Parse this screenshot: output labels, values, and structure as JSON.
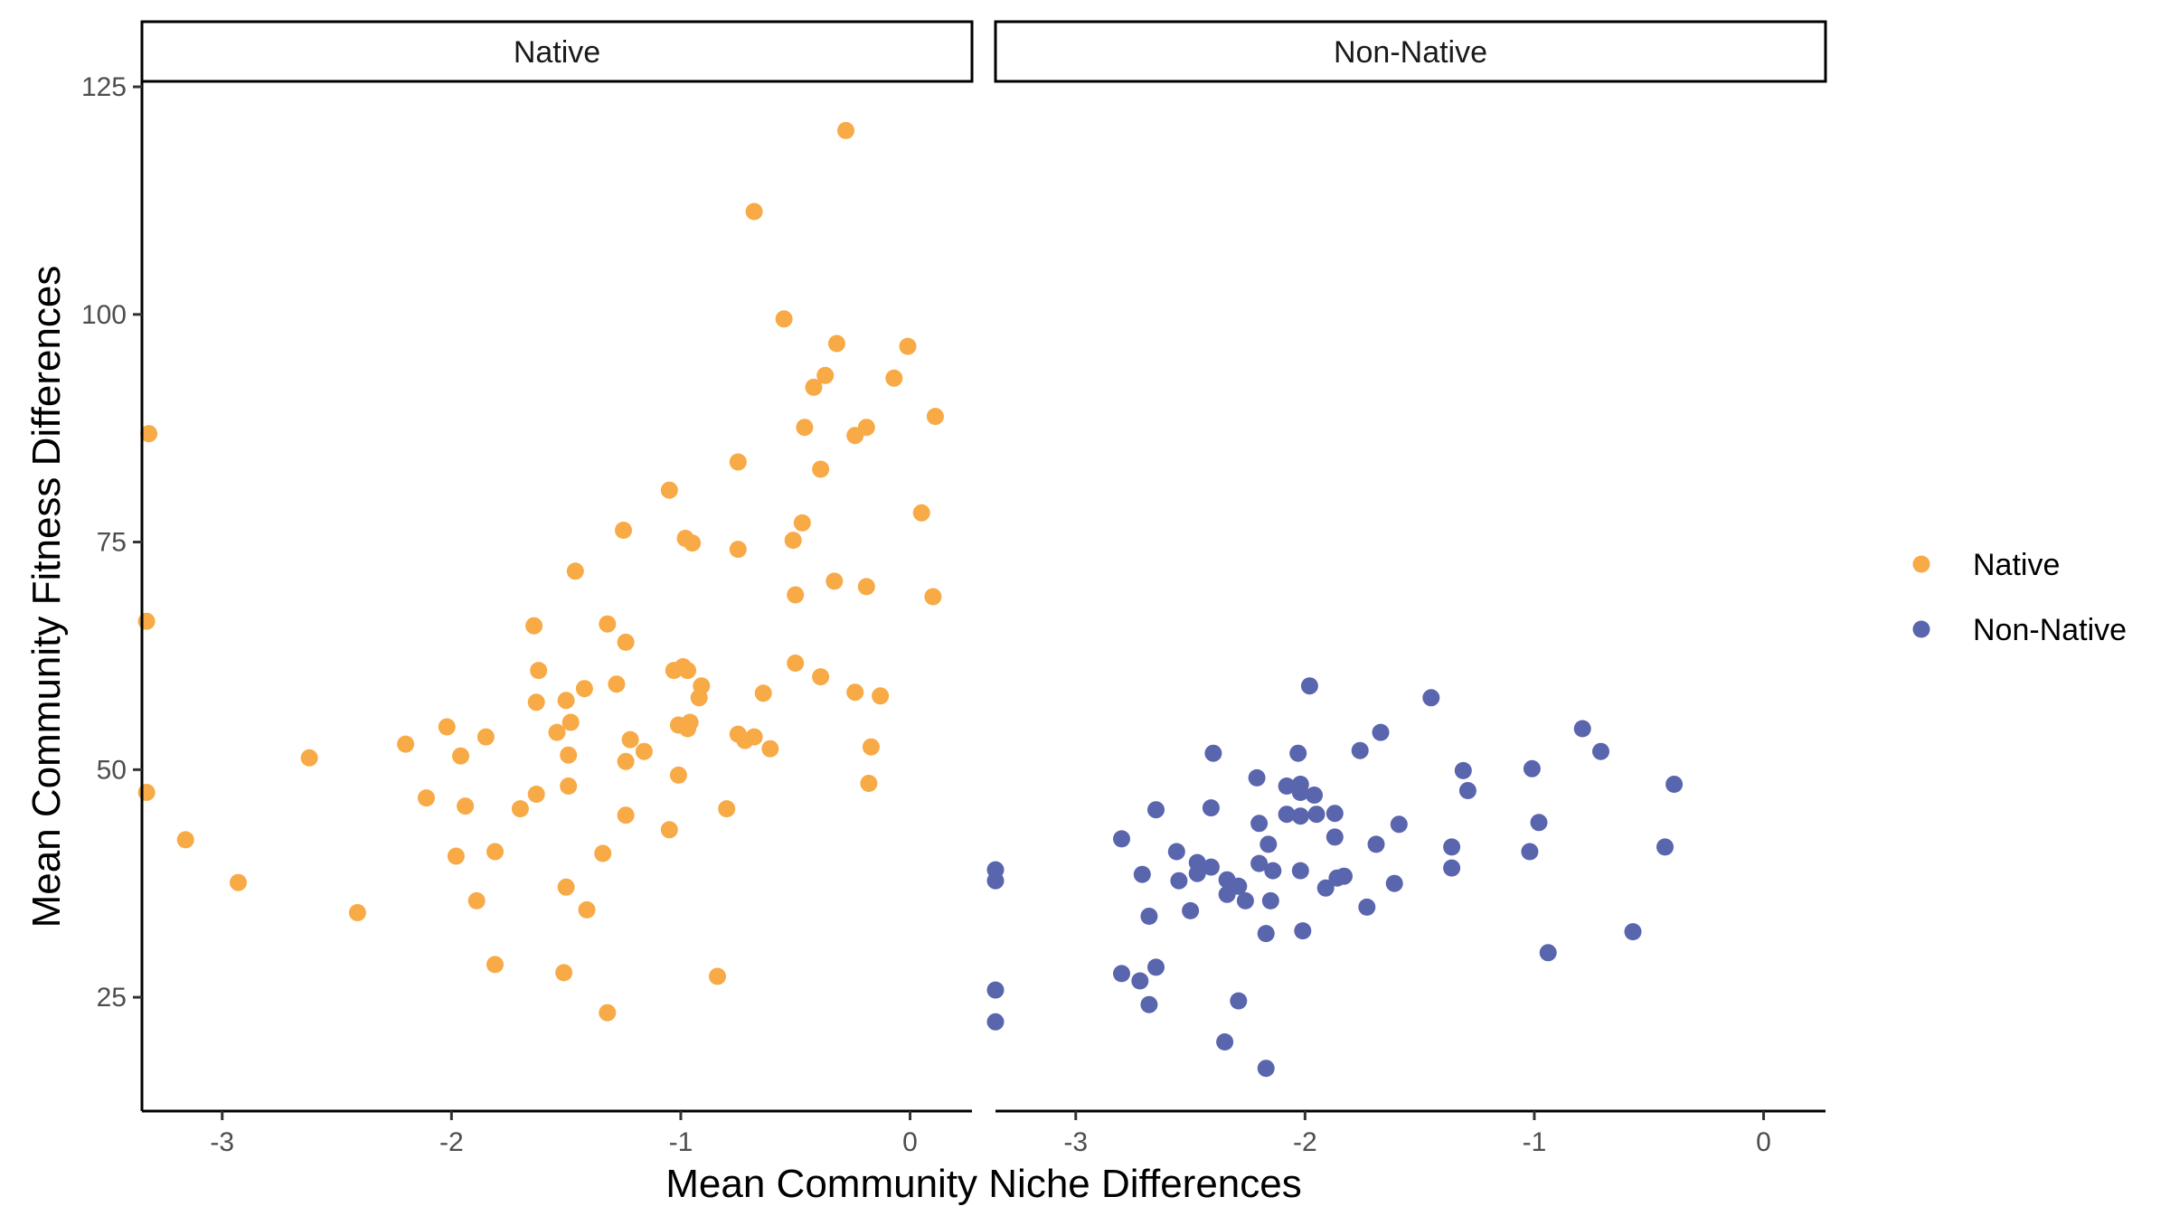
{
  "chart_data": {
    "type": "scatter",
    "xlabel": "Mean Community Niche Differences",
    "ylabel": "Mean Community Fitness Differences",
    "xlim": [
      -3.35,
      0.27
    ],
    "ylim": [
      12.5,
      125.5
    ],
    "x_ticks": [
      -3,
      -2,
      -1,
      0
    ],
    "x_tick_labels": [
      "-3",
      "-2",
      "-1",
      "0"
    ],
    "y_ticks": [
      25,
      50,
      75,
      100,
      125
    ],
    "y_tick_labels": [
      "25",
      "50",
      "75",
      "100",
      "125"
    ],
    "grid": false,
    "legend_position": "right",
    "facets": [
      {
        "label": "Native",
        "series": "Native"
      },
      {
        "label": "Non-Native",
        "series": "Non-Native"
      }
    ],
    "series": [
      {
        "name": "Native",
        "color": "#F7AA45",
        "points": [
          [
            -0.28,
            120.2
          ],
          [
            -0.68,
            111.3
          ],
          [
            -0.55,
            99.5
          ],
          [
            -0.32,
            96.8
          ],
          [
            -0.01,
            96.5
          ],
          [
            -0.37,
            93.3
          ],
          [
            -0.42,
            92.0
          ],
          [
            -0.07,
            93.0
          ],
          [
            0.11,
            88.8
          ],
          [
            -0.46,
            87.6
          ],
          [
            -0.19,
            87.6
          ],
          [
            -0.24,
            86.7
          ],
          [
            -3.32,
            86.9
          ],
          [
            -0.39,
            83.0
          ],
          [
            -0.75,
            83.8
          ],
          [
            -1.05,
            80.7
          ],
          [
            0.05,
            78.2
          ],
          [
            -0.47,
            77.1
          ],
          [
            -1.25,
            76.3
          ],
          [
            -0.98,
            75.4
          ],
          [
            -0.95,
            74.9
          ],
          [
            -0.51,
            75.2
          ],
          [
            -0.75,
            74.2
          ],
          [
            -1.46,
            71.8
          ],
          [
            -0.33,
            70.7
          ],
          [
            -0.19,
            70.1
          ],
          [
            0.1,
            69.0
          ],
          [
            -0.5,
            69.2
          ],
          [
            -3.33,
            66.3
          ],
          [
            -1.64,
            65.8
          ],
          [
            -1.32,
            66.0
          ],
          [
            -1.24,
            64.0
          ],
          [
            -0.99,
            61.3
          ],
          [
            -0.97,
            60.9
          ],
          [
            -1.03,
            60.9
          ],
          [
            -0.5,
            61.7
          ],
          [
            -1.62,
            60.9
          ],
          [
            -0.39,
            60.2
          ],
          [
            -1.28,
            59.4
          ],
          [
            -1.42,
            58.9
          ],
          [
            -0.91,
            59.2
          ],
          [
            -0.64,
            58.4
          ],
          [
            -0.24,
            58.5
          ],
          [
            -0.13,
            58.1
          ],
          [
            -1.63,
            57.4
          ],
          [
            -1.5,
            57.6
          ],
          [
            -0.92,
            57.9
          ],
          [
            -1.48,
            55.2
          ],
          [
            -1.01,
            54.9
          ],
          [
            -0.96,
            55.2
          ],
          [
            -0.97,
            54.5
          ],
          [
            -2.02,
            54.7
          ],
          [
            -1.85,
            53.6
          ],
          [
            -1.54,
            54.1
          ],
          [
            -0.75,
            53.9
          ],
          [
            -0.72,
            53.2
          ],
          [
            -0.68,
            53.6
          ],
          [
            -1.22,
            53.3
          ],
          [
            -2.2,
            52.8
          ],
          [
            -1.16,
            52.0
          ],
          [
            -0.61,
            52.3
          ],
          [
            -0.17,
            52.5
          ],
          [
            -2.62,
            51.3
          ],
          [
            -1.96,
            51.5
          ],
          [
            -1.49,
            51.6
          ],
          [
            -1.24,
            50.9
          ],
          [
            -1.01,
            49.4
          ],
          [
            -1.49,
            48.2
          ],
          [
            -0.18,
            48.5
          ],
          [
            -3.33,
            47.5
          ],
          [
            -1.63,
            47.3
          ],
          [
            -2.11,
            46.9
          ],
          [
            -1.94,
            46.0
          ],
          [
            -1.7,
            45.7
          ],
          [
            -0.8,
            45.7
          ],
          [
            -1.24,
            45.0
          ],
          [
            -1.05,
            43.4
          ],
          [
            -3.16,
            42.3
          ],
          [
            -1.98,
            40.5
          ],
          [
            -1.81,
            41.0
          ],
          [
            -1.34,
            40.8
          ],
          [
            -2.93,
            37.6
          ],
          [
            -1.5,
            37.1
          ],
          [
            -1.89,
            35.6
          ],
          [
            -1.41,
            34.6
          ],
          [
            -2.41,
            34.3
          ],
          [
            -1.81,
            28.6
          ],
          [
            -1.51,
            27.7
          ],
          [
            -0.84,
            27.3
          ],
          [
            -1.32,
            23.3
          ]
        ]
      },
      {
        "name": "Non-Native",
        "color": "#5965AD",
        "points": [
          [
            -1.98,
            59.2
          ],
          [
            -1.45,
            57.9
          ],
          [
            -0.79,
            54.5
          ],
          [
            -1.67,
            54.1
          ],
          [
            -1.76,
            52.1
          ],
          [
            -0.71,
            52.0
          ],
          [
            -2.4,
            51.8
          ],
          [
            -2.03,
            51.8
          ],
          [
            -1.31,
            49.9
          ],
          [
            -1.01,
            50.1
          ],
          [
            -2.21,
            49.1
          ],
          [
            -2.02,
            48.4
          ],
          [
            -0.39,
            48.4
          ],
          [
            -2.08,
            48.2
          ],
          [
            -2.02,
            47.5
          ],
          [
            -1.96,
            47.2
          ],
          [
            -1.29,
            47.7
          ],
          [
            -2.65,
            45.6
          ],
          [
            -2.41,
            45.8
          ],
          [
            -2.08,
            45.1
          ],
          [
            -2.02,
            44.9
          ],
          [
            -1.95,
            45.1
          ],
          [
            -1.87,
            45.2
          ],
          [
            -0.98,
            44.2
          ],
          [
            -1.59,
            44.0
          ],
          [
            -2.2,
            44.1
          ],
          [
            -1.87,
            42.6
          ],
          [
            -2.8,
            42.4
          ],
          [
            -2.16,
            41.8
          ],
          [
            -1.69,
            41.8
          ],
          [
            -1.36,
            41.5
          ],
          [
            -1.02,
            41.0
          ],
          [
            -0.43,
            41.5
          ],
          [
            -2.56,
            41.0
          ],
          [
            -2.47,
            39.8
          ],
          [
            -2.41,
            39.3
          ],
          [
            -2.2,
            39.7
          ],
          [
            -2.14,
            38.9
          ],
          [
            -2.02,
            38.9
          ],
          [
            -1.36,
            39.2
          ],
          [
            -3.35,
            39.0
          ],
          [
            -3.35,
            37.8
          ],
          [
            -2.71,
            38.5
          ],
          [
            -2.47,
            38.6
          ],
          [
            -2.55,
            37.8
          ],
          [
            -2.34,
            37.9
          ],
          [
            -2.29,
            37.2
          ],
          [
            -1.86,
            38.1
          ],
          [
            -1.83,
            38.3
          ],
          [
            -1.61,
            37.5
          ],
          [
            -1.91,
            37.0
          ],
          [
            -2.34,
            36.3
          ],
          [
            -2.26,
            35.6
          ],
          [
            -2.15,
            35.6
          ],
          [
            -1.73,
            34.9
          ],
          [
            -2.5,
            34.5
          ],
          [
            -2.68,
            33.9
          ],
          [
            -2.17,
            32.0
          ],
          [
            -2.01,
            32.3
          ],
          [
            -0.57,
            32.2
          ],
          [
            -0.94,
            29.9
          ],
          [
            -2.65,
            28.3
          ],
          [
            -2.8,
            27.6
          ],
          [
            -2.72,
            26.8
          ],
          [
            -3.35,
            25.8
          ],
          [
            -2.29,
            24.6
          ],
          [
            -2.68,
            24.2
          ],
          [
            -3.35,
            22.3
          ],
          [
            -2.35,
            20.1
          ],
          [
            -2.17,
            17.2
          ]
        ]
      }
    ]
  }
}
